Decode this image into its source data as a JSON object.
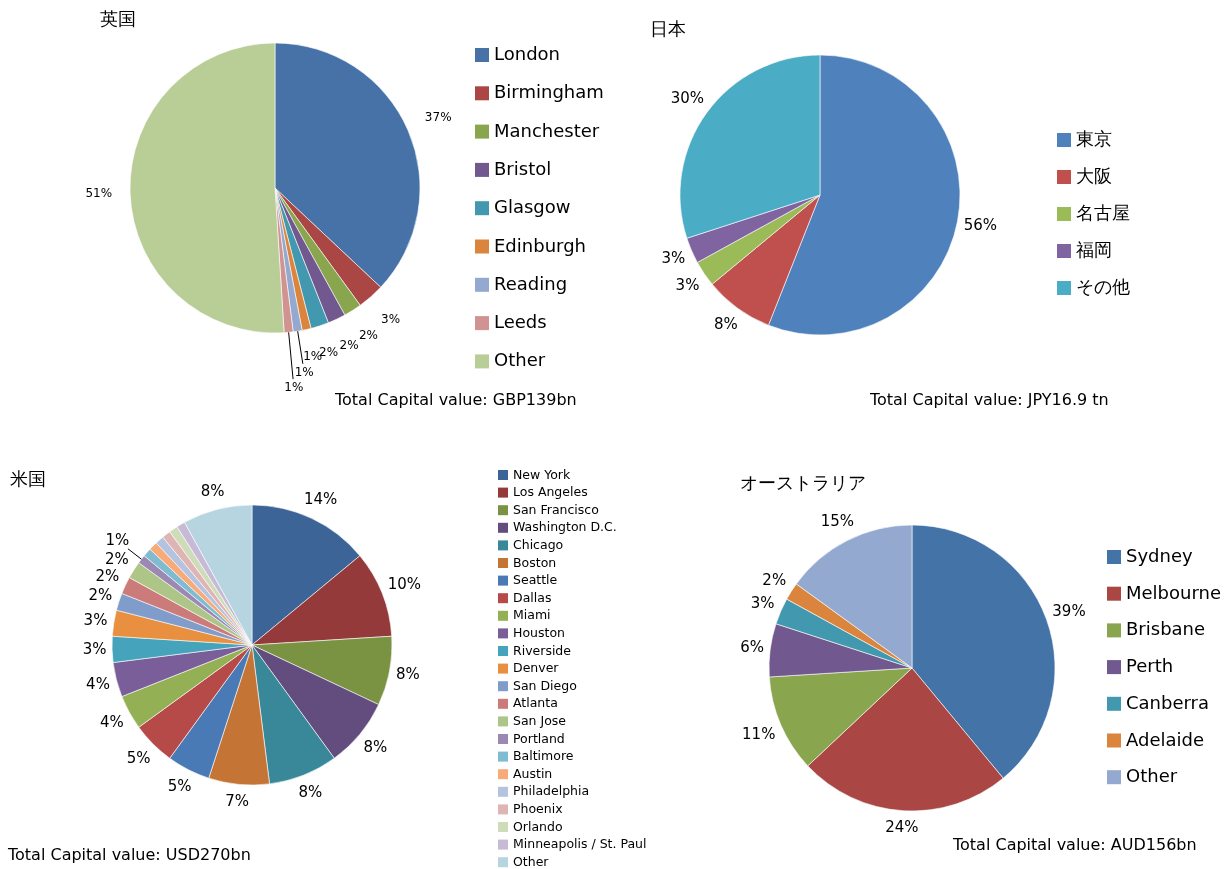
{
  "chart_data": [
    {
      "type": "pie",
      "title": "英国",
      "categories": [
        "London",
        "Birmingham",
        "Manchester",
        "Bristol",
        "Glasgow",
        "Edinburgh",
        "Reading",
        "Leeds",
        "Other"
      ],
      "values": [
        37,
        3,
        2,
        2,
        2,
        1,
        1,
        1,
        51
      ],
      "value_labels": [
        "37%",
        "3%",
        "2%",
        "2%",
        "2%",
        "1%",
        "1%",
        "1%",
        "51%"
      ],
      "colors": [
        "#4672a8",
        "#aa4643",
        "#89a54e",
        "#71588f",
        "#4198af",
        "#db843d",
        "#93a9cf",
        "#d19392",
        "#b9cd96"
      ],
      "legend": "right",
      "annotations": [
        "Total Capital value: GBP139bn"
      ]
    },
    {
      "type": "pie",
      "title": "日本",
      "categories": [
        "東京",
        "大阪",
        "名古屋",
        "福岡",
        "その他"
      ],
      "values": [
        56,
        8,
        3,
        3,
        30
      ],
      "value_labels": [
        "56%",
        "8%",
        "3%",
        "3%",
        "30%"
      ],
      "colors": [
        "#4f81bd",
        "#c0504d",
        "#9bbb59",
        "#8064a2",
        "#4bacc6"
      ],
      "legend": "right",
      "annotations": [
        "Total Capital value: JPY16.9 tn"
      ]
    },
    {
      "type": "pie",
      "title": "米国",
      "categories": [
        "New York",
        "Los Angeles",
        "San Francisco",
        "Washington D.C.",
        "Chicago",
        "Boston",
        "Seattle",
        "Dallas",
        "Miami",
        "Houston",
        "Riverside",
        "Denver",
        "San Diego",
        "Atlanta",
        "San Jose",
        "Portland",
        "Baltimore",
        "Austin",
        "Philadelphia",
        "Phoenix",
        "Orlando",
        "Minneapolis / St. Paul",
        "Other"
      ],
      "values": [
        14,
        10,
        8,
        8,
        8,
        7,
        5,
        5,
        4,
        4,
        3,
        3,
        2,
        2,
        2,
        1,
        1,
        1,
        1,
        1,
        1,
        1,
        8
      ],
      "value_labels": [
        "14%",
        "10%",
        "8%",
        "8%",
        "8%",
        "7%",
        "5%",
        "5%",
        "4%",
        "4%",
        "3%",
        "3%",
        "2%",
        "2%",
        "2%",
        "1%",
        null,
        null,
        null,
        null,
        null,
        null,
        "8%"
      ],
      "colors": [
        "#3c6496",
        "#953a3a",
        "#7a9343",
        "#634d7f",
        "#39889a",
        "#c47535",
        "#4a7ab5",
        "#b64a48",
        "#93b054",
        "#7a5e99",
        "#45a3bb",
        "#e8903f",
        "#7f9ccb",
        "#cb7b7a",
        "#adc687",
        "#9b88b3",
        "#7fbbd1",
        "#f8aa78",
        "#b4c3e0",
        "#dfb5b4",
        "#cfdcb9",
        "#c6bad6",
        "#b6d5e0"
      ],
      "legend": "right",
      "annotations": [
        "Total Capital value: USD270bn"
      ]
    },
    {
      "type": "pie",
      "title": "オーストラリア",
      "categories": [
        "Sydney",
        "Melbourne",
        "Brisbane",
        "Perth",
        "Canberra",
        "Adelaide",
        "Other"
      ],
      "values": [
        39,
        24,
        11,
        6,
        3,
        2,
        15
      ],
      "value_labels": [
        "39%",
        "24%",
        "11%",
        "6%",
        "3%",
        "2%",
        "15%"
      ],
      "colors": [
        "#4473a8",
        "#aa4643",
        "#89a54e",
        "#71588f",
        "#4198af",
        "#db843d",
        "#93a9cf"
      ],
      "legend": "right",
      "annotations": [
        "Total Capital value: AUD156bn"
      ]
    }
  ]
}
